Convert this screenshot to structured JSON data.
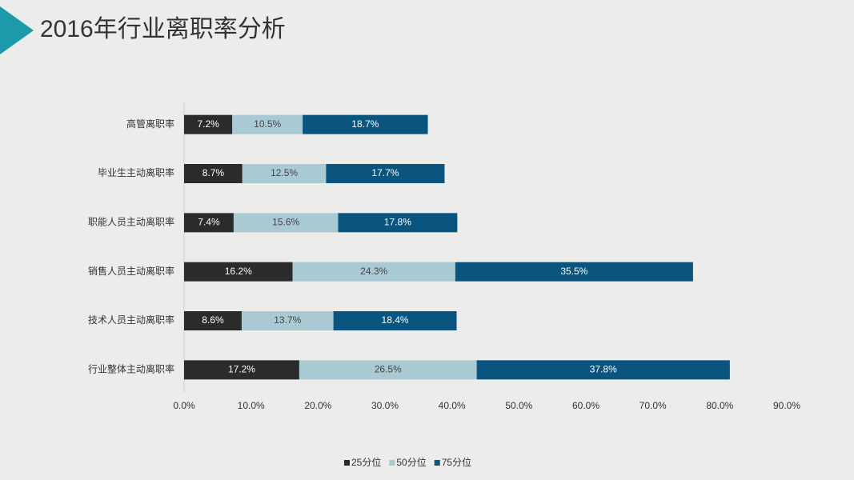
{
  "chart_data": {
    "type": "stacked-barh",
    "title": "2016年行业离职率分析",
    "categories": [
      "高管离职率",
      "毕业生主动离职率",
      "职能人员主动离职率",
      "销售人员主动离职率",
      "技术人员主动离职率",
      "行业整体主动离职率"
    ],
    "series": [
      {
        "name": "25分位",
        "color": "#2b2b2b",
        "values": [
          7.2,
          8.7,
          7.4,
          16.2,
          8.6,
          17.2
        ],
        "value_labels": [
          "7.2%",
          "8.7%",
          "7.4%",
          "16.2%",
          "8.6%",
          "17.2%"
        ]
      },
      {
        "name": "50分位",
        "color": "#a9cad3",
        "values": [
          10.5,
          12.5,
          15.6,
          24.3,
          13.7,
          26.5
        ],
        "value_labels": [
          "10.5%",
          "12.5%",
          "15.6%",
          "24.3%",
          "13.7%",
          "26.5%"
        ]
      },
      {
        "name": "75分位",
        "color": "#0a5580",
        "values": [
          18.7,
          17.7,
          17.8,
          35.5,
          18.4,
          37.8
        ],
        "value_labels": [
          "18.7%",
          "17.7%",
          "17.8%",
          "35.5%",
          "18.4%",
          "37.8%"
        ]
      }
    ],
    "xlim": [
      0,
      90
    ],
    "xticks": [
      {
        "value": 0,
        "label": "0.0%"
      },
      {
        "value": 10,
        "label": "10.0%"
      },
      {
        "value": 20,
        "label": "20.0%"
      },
      {
        "value": 30,
        "label": "30.0%"
      },
      {
        "value": 40,
        "label": "40.0%"
      },
      {
        "value": 50,
        "label": "50.0%"
      },
      {
        "value": 60,
        "label": "60.0%"
      },
      {
        "value": 70,
        "label": "70.0%"
      },
      {
        "value": 80,
        "label": "80.0%"
      },
      {
        "value": 90,
        "label": "90.0%"
      }
    ],
    "legend": "bottom",
    "grid": false
  }
}
